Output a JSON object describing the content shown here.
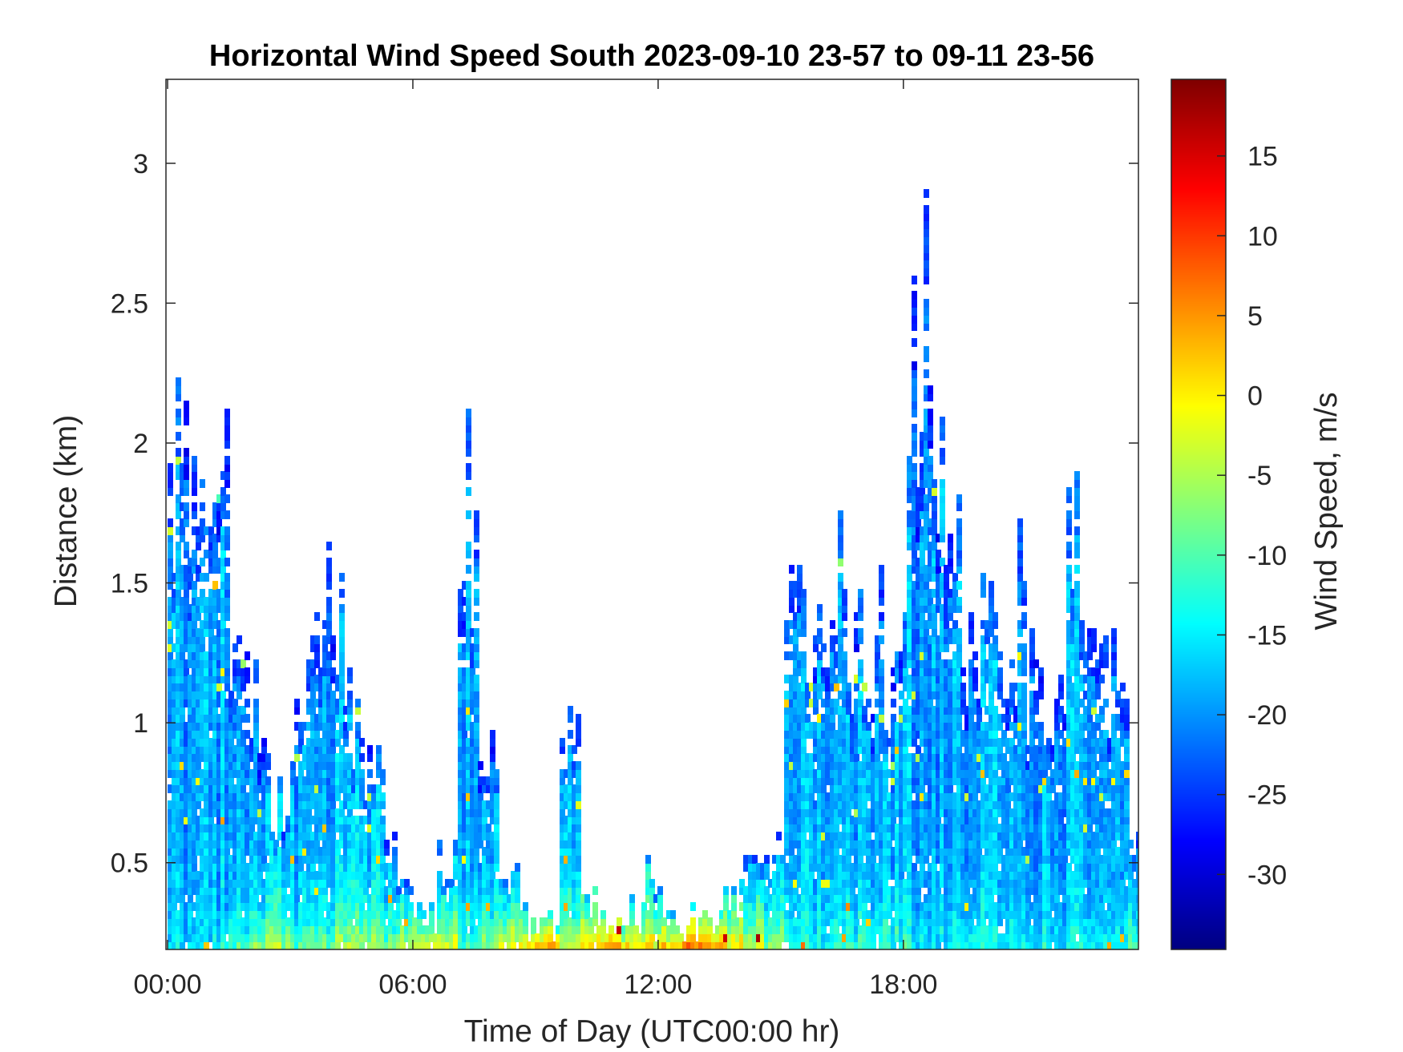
{
  "chart_data": {
    "type": "heatmap",
    "title": "Horizontal Wind Speed South 2023-09-10 23-57 to 09-11 23-56",
    "xlabel": "Time of Day (UTC00:00 hr)",
    "ylabel": "Distance (km)",
    "colorbar_label": "Wind Speed, m/s",
    "colormap": "jet",
    "xlim_hours": [
      -0.04,
      23.75
    ],
    "ylim_km": [
      0.19,
      3.3
    ],
    "clim": [
      -34.7,
      19.8
    ],
    "x_ticks": [
      {
        "value": 0,
        "label": "00:00"
      },
      {
        "value": 6,
        "label": "06:00"
      },
      {
        "value": 12,
        "label": "12:00"
      },
      {
        "value": 18,
        "label": "18:00"
      }
    ],
    "y_ticks": [
      {
        "value": 0.5,
        "label": "0.5"
      },
      {
        "value": 1,
        "label": "1"
      },
      {
        "value": 1.5,
        "label": "1.5"
      },
      {
        "value": 2,
        "label": "2"
      },
      {
        "value": 2.5,
        "label": "2.5"
      },
      {
        "value": 3,
        "label": "3"
      }
    ],
    "colorbar_ticks": [
      {
        "value": -30,
        "label": "-30"
      },
      {
        "value": -25,
        "label": "-25"
      },
      {
        "value": -20,
        "label": "-20"
      },
      {
        "value": -15,
        "label": "-15"
      },
      {
        "value": -10,
        "label": "-10"
      },
      {
        "value": -5,
        "label": "-5"
      },
      {
        "value": 0,
        "label": "0"
      },
      {
        "value": 5,
        "label": "5"
      },
      {
        "value": 10,
        "label": "10"
      },
      {
        "value": 15,
        "label": "15"
      }
    ],
    "profile_bin_hours": 0.5,
    "data_top_km_per_bin": [
      1.95,
      1.9,
      1.9,
      1.2,
      1.1,
      0.75,
      1.2,
      1.6,
      1.5,
      1.0,
      0.8,
      0.4,
      0.35,
      0.5,
      1.9,
      0.9,
      0.5,
      0.3,
      0.3,
      1.2,
      0.4,
      0.3,
      0.35,
      0.5,
      0.3,
      0.3,
      0.3,
      0.4,
      0.5,
      0.6,
      1.4,
      1.4,
      1.6,
      1.3,
      1.4,
      1.2,
      2.6,
      2.2,
      1.6,
      1.4,
      1.3,
      1.5,
      1.2,
      1.1,
      1.7,
      1.4,
      1.3,
      0.6
    ],
    "near_surface_speed_per_bin": [
      -16,
      -16,
      -14,
      -10,
      -6,
      -6,
      -10,
      -8,
      -6,
      -6,
      -8,
      -6,
      -4,
      -2,
      -10,
      -6,
      -2,
      0,
      2,
      -4,
      0,
      2,
      0,
      0,
      2,
      4,
      4,
      0,
      -2,
      -6,
      -12,
      -14,
      -12,
      -12,
      -12,
      -12,
      -14,
      -14,
      -14,
      -12,
      -14,
      -14,
      -14,
      -14,
      -14,
      -14,
      -14,
      -10
    ],
    "aloft_speed_m_s": -19
  }
}
